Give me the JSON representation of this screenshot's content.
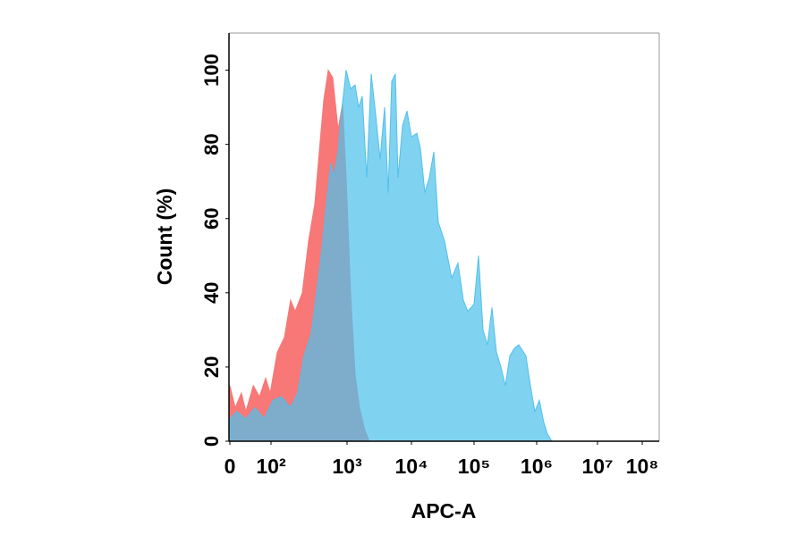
{
  "chart_data": {
    "type": "area",
    "xlabel": "APC-A",
    "ylabel": "Count  (%)",
    "xscale": "biexponential",
    "xlim": [
      0,
      240000000
    ],
    "ylim": [
      0,
      110
    ],
    "xticks": [
      0,
      {
        "value": 100,
        "label": "10²"
      },
      {
        "value": 1000,
        "label": "10³"
      },
      {
        "value": 10000,
        "label": "10⁴"
      },
      {
        "value": 100000,
        "label": "10⁵"
      },
      {
        "value": 1000000,
        "label": "10⁶"
      },
      {
        "value": 10000000,
        "label": "10⁷"
      },
      {
        "value": 100000000,
        "label": "10⁸"
      }
    ],
    "yticks": [
      0,
      20,
      40,
      60,
      80,
      100
    ],
    "grid": false,
    "series": [
      {
        "color": "#f87777",
        "x": [
          0,
          13,
          28,
          39,
          57,
          72,
          87,
          98,
          121,
          150,
          181,
          208,
          258,
          312,
          377,
          444,
          494,
          566,
          649,
          763,
          874,
          973,
          1136,
          1334,
          1565,
          1896,
          2223
        ],
        "values": [
          15,
          9,
          13,
          8,
          15,
          12,
          17,
          13,
          24,
          28,
          38,
          35,
          40,
          54,
          64,
          81,
          92,
          100,
          98,
          84,
          91,
          71,
          40,
          18,
          9,
          3,
          0
        ]
      },
      {
        "color": "#4fc0ec",
        "x": [
          0,
          17,
          39,
          61,
          83,
          106,
          138,
          181,
          225,
          272,
          338,
          409,
          469,
          536,
          614,
          666,
          763,
          850,
          973,
          1136,
          1334,
          1516,
          1722,
          2022,
          2371,
          2783,
          3266,
          3831,
          4355,
          4946,
          5623,
          6189,
          7263,
          8532,
          10000,
          12190,
          13900,
          16380,
          19310,
          22760,
          26830,
          33800,
          43940,
          55340,
          67440,
          79430,
          100000,
          117900,
          139000,
          163800,
          193100,
          227600,
          268300,
          316200,
          372800,
          439400,
          517900,
          674400,
          794300,
          936300,
          1107000,
          1312000,
          1500000,
          1778000
        ],
        "values": [
          6,
          8,
          6,
          9,
          6,
          11,
          12,
          9,
          13,
          23,
          29,
          42,
          52,
          64,
          75,
          71,
          78,
          89,
          100,
          95,
          96,
          90,
          93,
          71,
          99,
          88,
          76,
          90,
          67,
          97,
          99,
          71,
          85,
          89,
          82,
          83,
          79,
          67,
          71,
          78,
          59,
          54,
          44,
          48,
          38,
          35,
          37,
          50,
          30,
          26,
          36,
          24,
          20,
          15,
          23,
          25,
          26,
          23,
          15,
          8,
          11,
          5,
          2,
          0
        ]
      }
    ]
  }
}
